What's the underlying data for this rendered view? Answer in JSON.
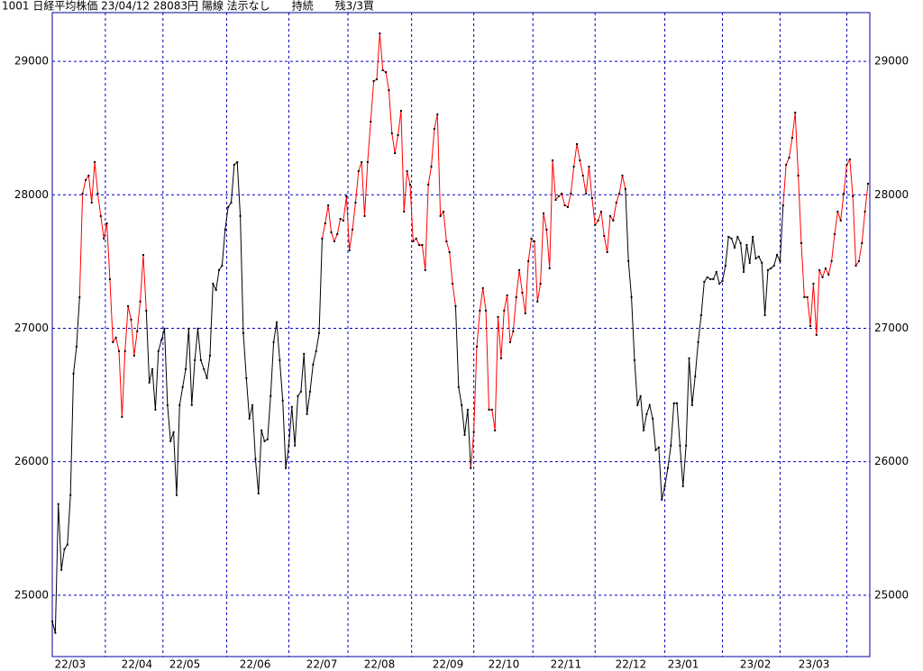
{
  "chart_data": {
    "type": "line",
    "title": "1001 日経平均株価 23/04/12 28083円 陽線 法示なし　　持続　　残3/3買",
    "values": [
      24804,
      24718,
      25683,
      25190,
      25345,
      25379,
      25750,
      26660,
      26862,
      27233,
      28009,
      28110,
      28144,
      27941,
      28245,
      28009,
      27841,
      27672,
      27786,
      27368,
      26896,
      26930,
      26829,
      26336,
      26829,
      27166,
      27065,
      26795,
      26977,
      27200,
      27550,
      27132,
      26593,
      26694,
      26390,
      26829,
      26910,
      26997,
      26424,
      26154,
      26222,
      25750,
      26424,
      26559,
      26694,
      26997,
      26424,
      26761,
      26997,
      26761,
      26694,
      26626,
      26795,
      27334,
      27287,
      27436,
      27469,
      27739,
      27908,
      27941,
      28225,
      28245,
      27841,
      26964,
      26626,
      26323,
      26424,
      26020,
      25763,
      26235,
      26154,
      26168,
      26492,
      26896,
      27045,
      26761,
      26458,
      25952,
      26121,
      26411,
      26121,
      26492,
      26525,
      26808,
      26357,
      26525,
      26728,
      26829,
      26964,
      27672,
      27786,
      27921,
      27719,
      27651,
      27705,
      27820,
      27807,
      27989,
      27584,
      27739,
      27941,
      28177,
      28245,
      27841,
      28245,
      28548,
      28852,
      28865,
      29209,
      28933,
      28919,
      28784,
      28461,
      28312,
      28447,
      28629,
      27874,
      28177,
      28076,
      27651,
      27672,
      27624,
      27624,
      27436,
      28076,
      28211,
      28494,
      28602,
      27841,
      27874,
      27651,
      27570,
      27334,
      27166,
      26559,
      26424,
      26201,
      26390,
      25952,
      26222,
      26862,
      27132,
      27301,
      27132,
      26390,
      26390,
      26235,
      27085,
      26775,
      27132,
      27247,
      26896,
      26977,
      27233,
      27436,
      27267,
      27112,
      27503,
      27672,
      27651,
      27200,
      27334,
      27861,
      27739,
      27449,
      28258,
      27962,
      27989,
      28009,
      27921,
      27908,
      28009,
      28211,
      28380,
      28258,
      28144,
      28009,
      28211,
      27975,
      27773,
      27807,
      27874,
      27692,
      27570,
      27841,
      27807,
      27941,
      28009,
      28144,
      28043,
      27503,
      27233,
      26761,
      26424,
      26492,
      26235,
      26357,
      26424,
      26323,
      26087,
      26107,
      25716,
      25817,
      25952,
      26121,
      26438,
      26438,
      26121,
      25817,
      26121,
      26775,
      26424,
      26640,
      26896,
      27098,
      27348,
      27382,
      27368,
      27368,
      27422,
      27334,
      27355,
      27469,
      27685,
      27672,
      27604,
      27685,
      27638,
      27422,
      27624,
      27490,
      27685,
      27523,
      27537,
      27490,
      27098,
      27436,
      27449,
      27469,
      27550,
      27503,
      27921,
      28225,
      28278,
      28427,
      28616,
      28144,
      27638,
      27233,
      27233,
      27017,
      27334,
      26950,
      27436,
      27382,
      27449,
      27402,
      27503,
      27705,
      27874,
      27807,
      28009,
      28225,
      28265,
      27989,
      27469,
      27503,
      27638,
      27874,
      28083
    ],
    "color_runs": [
      {
        "start": 0,
        "color": "#000000"
      },
      {
        "start": 10,
        "color": "#ff0000"
      },
      {
        "start": 32,
        "color": "#000000"
      },
      {
        "start": 90,
        "color": "#ff0000"
      },
      {
        "start": 134,
        "color": "#000000"
      },
      {
        "start": 139,
        "color": "#ff0000"
      },
      {
        "start": 190,
        "color": "#000000"
      },
      {
        "start": 242,
        "color": "#ff0000"
      }
    ],
    "point_color": "#000000",
    "xlim": [
      0,
      269.6
    ],
    "xticks": [
      {
        "value": 5.9,
        "label": "22/03"
      },
      {
        "value": 27.9,
        "label": "22/04"
      },
      {
        "value": 43.7,
        "label": "22/05"
      },
      {
        "value": 66.9,
        "label": "22/06"
      },
      {
        "value": 88.9,
        "label": "22/07"
      },
      {
        "value": 107.9,
        "label": "22/08"
      },
      {
        "value": 130.5,
        "label": "22/09"
      },
      {
        "value": 148.9,
        "label": "22/10"
      },
      {
        "value": 169.4,
        "label": "22/11"
      },
      {
        "value": 190.8,
        "label": "22/12"
      },
      {
        "value": 208.1,
        "label": "23/01"
      },
      {
        "value": 231.9,
        "label": "23/02"
      },
      {
        "value": 251.2,
        "label": "23/03"
      }
    ],
    "xgrid_lines": [
      17.5,
      36.5,
      57.5,
      78,
      97.5,
      118.5,
      139,
      158.5,
      179,
      202,
      221,
      240,
      262
    ],
    "ylim": [
      24540,
      29365
    ],
    "yticks": [
      25000,
      26000,
      27000,
      28000,
      29000
    ],
    "grid": true
  }
}
